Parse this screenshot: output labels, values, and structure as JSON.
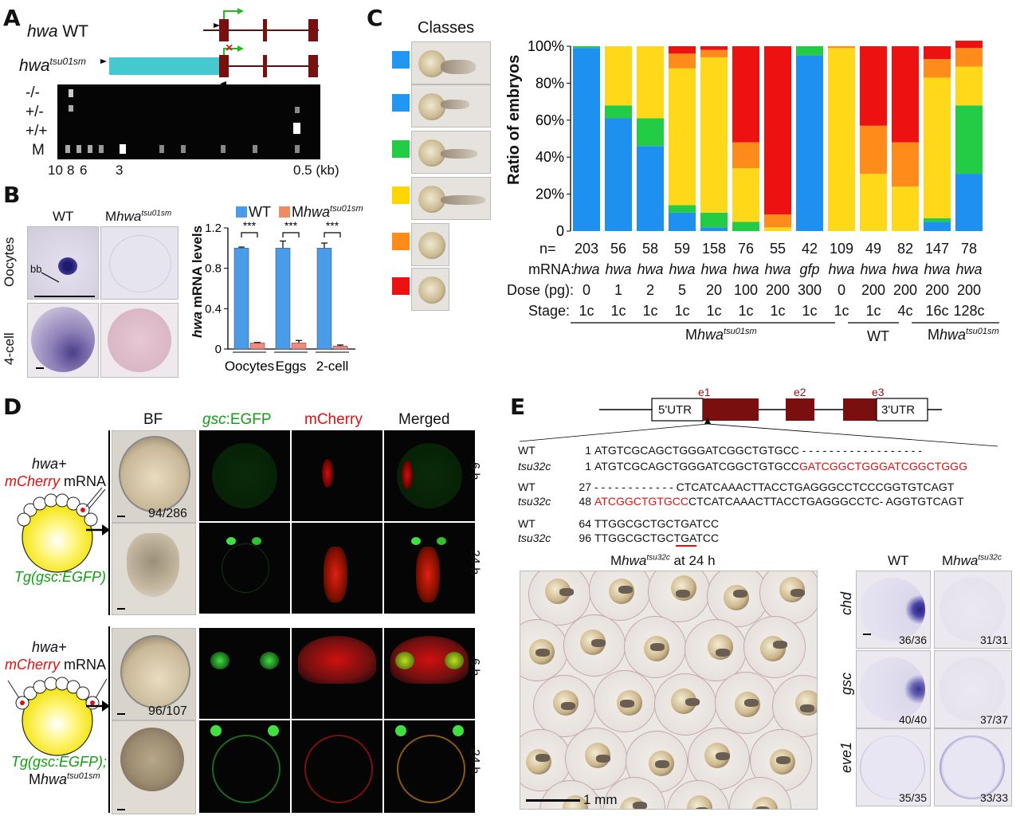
{
  "panelA": {
    "label": "A",
    "wt_label_i": "hwa",
    "wt_label_n": " WT",
    "mut_label_i": "hwa",
    "mut_label_sup": "tsu01sm",
    "gel_rows": [
      "-/-",
      "+/-",
      "+/+",
      "M"
    ],
    "sizes": [
      "10",
      "8",
      "6",
      "3",
      "0.5 (kb)"
    ],
    "mutation_mark": "×"
  },
  "panelB": {
    "label": "B",
    "col_wt": "WT",
    "col_mut_prefix": "M",
    "col_mut_i": "hwa",
    "col_mut_sup": "tsu01sm",
    "row1": "Oocytes",
    "row2": "4-cell",
    "bb": "bb",
    "legend_wt": "WT",
    "legend_mut_prefix": "M",
    "legend_mut_i": "hwa",
    "legend_mut_sup": "tsu01sm",
    "sig": "***",
    "ylabel_i": "hwa",
    "ylabel_n": " mRNA levels"
  },
  "chart_data": [
    {
      "type": "bar",
      "categories": [
        "Oocytes",
        "Eggs",
        "2-cell"
      ],
      "series": [
        {
          "name": "WT",
          "values": [
            1.0,
            1.0,
            1.0
          ],
          "errors": [
            0.01,
            0.07,
            0.05
          ],
          "color": "#4a9be8"
        },
        {
          "name": "Mhwa tsu01sm",
          "values": [
            0.06,
            0.06,
            0.03
          ],
          "errors": [
            0.005,
            0.025,
            0.01
          ],
          "color": "#f08a80"
        }
      ],
      "ylim": [
        0,
        1.2
      ],
      "yticks": [
        "0",
        "0.4",
        "0.8",
        "1.2"
      ],
      "ytick_values": [
        0,
        0.4,
        0.8,
        1.2
      ]
    },
    {
      "type": "bar",
      "stacked": true,
      "ylabel": "Ratio of embryos",
      "yticks": [
        "0",
        "20%",
        "40%",
        "60%",
        "80%",
        "100%"
      ],
      "class_colors": [
        "#2196f3",
        "#2196f3",
        "#22cc44",
        "#ffd600",
        "#ff8c1a",
        "#ee1111"
      ],
      "segment_order": [
        "blue",
        "green",
        "yellow",
        "orange",
        "red"
      ],
      "segment_colors": {
        "blue": "#1e90f0",
        "green": "#22cc44",
        "yellow": "#ffd81a",
        "orange": "#ff8c1a",
        "red": "#ee1111"
      },
      "bars": [
        {
          "n": "203",
          "mrna": "hwa",
          "dose": "0",
          "stage": "1c",
          "blue": 99,
          "green": 1,
          "yellow": 0,
          "orange": 0,
          "red": 0
        },
        {
          "n": "56",
          "mrna": "hwa",
          "dose": "1",
          "stage": "1c",
          "blue": 61,
          "green": 7,
          "yellow": 32,
          "orange": 0,
          "red": 0
        },
        {
          "n": "58",
          "mrna": "hwa",
          "dose": "2",
          "stage": "1c",
          "blue": 46,
          "green": 15,
          "yellow": 39,
          "orange": 0,
          "red": 0
        },
        {
          "n": "59",
          "mrna": "hwa",
          "dose": "5",
          "stage": "1c",
          "blue": 10,
          "green": 4,
          "yellow": 74,
          "orange": 8,
          "red": 4
        },
        {
          "n": "158",
          "mrna": "hwa",
          "dose": "20",
          "stage": "1c",
          "blue": 2,
          "green": 8,
          "yellow": 84,
          "orange": 4,
          "red": 2
        },
        {
          "n": "76",
          "mrna": "hwa",
          "dose": "100",
          "stage": "1c",
          "blue": 0,
          "green": 5,
          "yellow": 29,
          "orange": 14,
          "red": 52
        },
        {
          "n": "55",
          "mrna": "hwa",
          "dose": "200",
          "stage": "1c",
          "blue": 0,
          "green": 0,
          "yellow": 2,
          "orange": 7,
          "red": 91
        },
        {
          "n": "42",
          "mrna": "gfp",
          "dose": "300",
          "stage": "1c",
          "blue": 95,
          "green": 5,
          "yellow": 0,
          "orange": 0,
          "red": 0
        },
        {
          "n": "109",
          "mrna": "hwa",
          "dose": "0",
          "stage": "1c",
          "blue": 0,
          "green": 0,
          "yellow": 99,
          "orange": 1,
          "red": 0
        },
        {
          "n": "49",
          "mrna": "hwa",
          "dose": "200",
          "stage": "1c",
          "blue": 0,
          "green": 0,
          "yellow": 31,
          "orange": 26,
          "red": 43
        },
        {
          "n": "82",
          "mrna": "hwa",
          "dose": "200",
          "stage": "4c",
          "blue": 0,
          "green": 0,
          "yellow": 24,
          "orange": 24,
          "red": 52
        },
        {
          "n": "147",
          "mrna": "hwa",
          "dose": "200",
          "stage": "16c",
          "blue": 5,
          "green": 2,
          "yellow": 76,
          "orange": 10,
          "red": 7
        },
        {
          "n": "78",
          "mrna": "hwa",
          "dose": "200",
          "stage": "128c",
          "blue": 31,
          "green": 37,
          "yellow": 21,
          "orange": 10,
          "red": 4
        }
      ]
    }
  ],
  "panelC": {
    "label": "C",
    "classes_title": "Classes",
    "row_n": "n=",
    "row_mrna": "mRNA:",
    "row_dose": "Dose (pg):",
    "row_stage": "Stage:",
    "group1_prefix": "M",
    "group1_i": "hwa",
    "group1_sup": "tsu01sm",
    "group2": "WT",
    "group3_prefix": "M",
    "group3_i": "hwa",
    "group3_sup": "tsu01sm"
  },
  "panelD": {
    "label": "D",
    "col_bf": "BF",
    "col_gsc_i": "gsc",
    "col_gsc_n": ":EGFP",
    "col_mcherry": "mCherry",
    "col_merged": "Merged",
    "time_6h": "6 h",
    "time_24h": "24 h",
    "top_line1": "hwa+",
    "top_line2_i": "mCherry",
    "top_line2_n": " mRNA",
    "top_tg": "Tg(gsc:EGFP)",
    "bot_line1": "hwa+",
    "bot_line2_i": "mCherry",
    "bot_line2_n": " mRNA",
    "bot_tg": "Tg(gsc:EGFP);",
    "bot_tg2_prefix": "M",
    "bot_tg2_i": "hwa",
    "bot_tg2_sup": "tsu01sm",
    "count_top": "94/286",
    "count_bot": "96/107"
  },
  "panelE": {
    "label": "E",
    "exons": [
      "e1",
      "e2",
      "e3"
    ],
    "utr5": "5'UTR",
    "utr3": "3'UTR",
    "seq": [
      {
        "name": "WT",
        "num": "1",
        "seq": "ATGTCGCAGCTGGGATCGGCTGTGCC",
        "red": "",
        "tail": " - - - - - - - - - - - - - - - - - -"
      },
      {
        "name": "tsu32c",
        "num": "1",
        "seq": "ATGTCGCAGCTGGGATCGGCTGTGCC",
        "red": "GATCGGCTGGGATCGGCTGGG",
        "tail": ""
      },
      {
        "name": "WT",
        "num": "27",
        "seq": "- - - - - - - - - - - - ",
        "red": "",
        "tail": "CTCATCAAACTTACCTGAGGGCCTCCCGGTGTCAGT"
      },
      {
        "name": "tsu32c",
        "num": "48",
        "seq": "",
        "red": "ATCGGCTGTGCC",
        "tail": "CTCATCAAACTTACCTGAGGGCCTC- AGGTGTCAGT"
      },
      {
        "name": "WT",
        "num": "64",
        "seq": "TTGGCGCTGCTGATCC",
        "red": "",
        "tail": ""
      },
      {
        "name": "tsu32c",
        "num": "96",
        "seq": "TTGGCGCTGCTGATCC",
        "red": "",
        "tail": ""
      }
    ],
    "photo_title_prefix": "M",
    "photo_title_i": "hwa",
    "photo_title_sup": "tsu32c",
    "photo_title_n": " at 24 h",
    "scale": "1 mm",
    "ish_col_wt": "WT",
    "ish_col_mut_prefix": "M",
    "ish_col_mut_i": "hwa",
    "ish_col_mut_sup": "tsu32c",
    "genes": [
      "chd",
      "gsc",
      "eve1"
    ],
    "counts_wt": [
      "36/36",
      "40/40",
      "35/35"
    ],
    "counts_mut": [
      "31/31",
      "37/37",
      "33/33"
    ]
  }
}
